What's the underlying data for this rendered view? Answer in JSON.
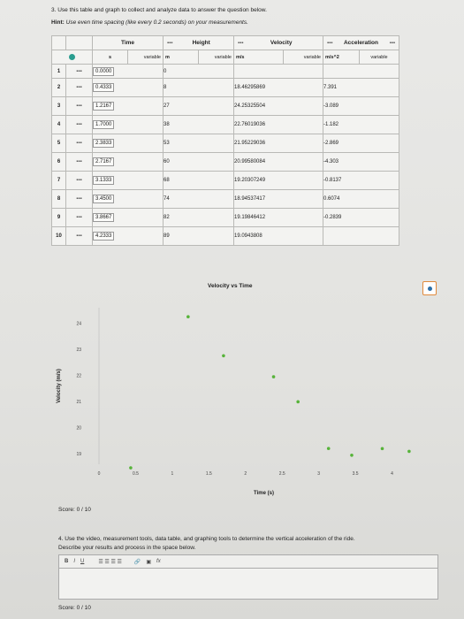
{
  "question3": "3. Use this table and graph to collect and analyze data to answer the question below.",
  "hint": {
    "label": "Hint:",
    "text": "Use even time spacing (like every 0.2 seconds) on your measurements."
  },
  "table": {
    "columns": [
      {
        "name": "Time",
        "unit": "s",
        "role": ""
      },
      {
        "name": "Height",
        "unit": "m",
        "role": "variable"
      },
      {
        "name": "Velocity",
        "unit": "m/s",
        "role": "variable"
      },
      {
        "name": "Acceleration",
        "unit": "m/s^2",
        "role": "variable"
      }
    ],
    "last_role": "variable",
    "rows": [
      {
        "n": "1",
        "t": "0.0000",
        "h": "0",
        "v": "",
        "a": ""
      },
      {
        "n": "2",
        "t": "0.4333",
        "h": "8",
        "v": "18.46295869",
        "a": "7.391"
      },
      {
        "n": "3",
        "t": "1.2167",
        "h": "27",
        "v": "24.25325504",
        "a": "-3.089"
      },
      {
        "n": "4",
        "t": "1.7000",
        "h": "38",
        "v": "22.76019036",
        "a": "-1.182"
      },
      {
        "n": "5",
        "t": "2.3833",
        "h": "53",
        "v": "21.95229036",
        "a": "-2.869"
      },
      {
        "n": "6",
        "t": "2.7167",
        "h": "60",
        "v": "20.99580084",
        "a": "-4.303"
      },
      {
        "n": "7",
        "t": "3.1333",
        "h": "68",
        "v": "19.20307249",
        "a": "-0.8137"
      },
      {
        "n": "8",
        "t": "3.4500",
        "h": "74",
        "v": "18.94537417",
        "a": "0.6074"
      },
      {
        "n": "9",
        "t": "3.8667",
        "h": "82",
        "v": "19.19846412",
        "a": "-0.2839"
      },
      {
        "n": "10",
        "t": "4.2333",
        "h": "89",
        "v": "19.0943808",
        "a": ""
      }
    ]
  },
  "chart_data": {
    "type": "scatter",
    "title": "Velocity vs Time",
    "xlabel": "Time (s)",
    "ylabel": "Velocity (m/s)",
    "xticks": [
      "0",
      "0.5",
      "1",
      "1.5",
      "2",
      "2.5",
      "3",
      "3.5",
      "4"
    ],
    "yticks": [
      "19",
      "20",
      "21",
      "22",
      "23",
      "24"
    ],
    "xlim": [
      0,
      4.5
    ],
    "ylim": [
      18.6,
      24.6
    ],
    "points": [
      {
        "x": 0.4333,
        "y": 18.46295869
      },
      {
        "x": 1.2167,
        "y": 24.25325504
      },
      {
        "x": 1.7,
        "y": 22.76019036
      },
      {
        "x": 2.3833,
        "y": 21.95229036
      },
      {
        "x": 2.7167,
        "y": 20.99580084
      },
      {
        "x": 3.1333,
        "y": 19.20307249
      },
      {
        "x": 3.45,
        "y": 18.94537417
      },
      {
        "x": 3.8667,
        "y": 19.19846412
      },
      {
        "x": 4.2333,
        "y": 19.0943808
      }
    ],
    "point_color": "#57b33a"
  },
  "score1": "Score: 0 / 10",
  "question4": [
    "4. Use the video, measurement tools, data table, and graphing tools to determine the vertical acceleration of the ride.",
    "Describe your results and process in the space below."
  ],
  "toolbar": {
    "bold": "B",
    "italic": "I",
    "underline": "U",
    "align": "☰ ☰ ☰ ☰",
    "link": "🔗",
    "image": "▣",
    "formula": "fx"
  },
  "score2": "Score: 0 / 10"
}
